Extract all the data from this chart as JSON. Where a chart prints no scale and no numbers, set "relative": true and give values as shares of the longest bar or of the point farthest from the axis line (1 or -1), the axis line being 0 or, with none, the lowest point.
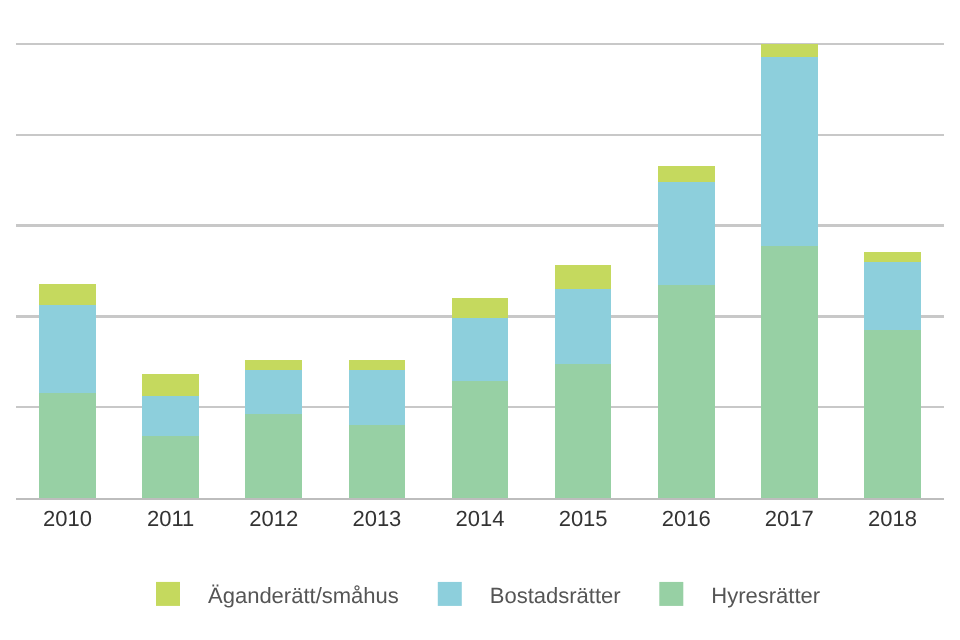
{
  "chart_data": {
    "type": "bar",
    "stacked": true,
    "relative": true,
    "grid": true,
    "legend": "bottom",
    "categories": [
      "2010",
      "2011",
      "2012",
      "2013",
      "2014",
      "2015",
      "2016",
      "2017",
      "2018"
    ],
    "series": [
      {
        "name": "Hyresrätter",
        "color": "#97d0a4",
        "values": [
          0.232,
          0.136,
          0.186,
          0.16,
          0.258,
          0.296,
          0.468,
          0.556,
          0.37
        ]
      },
      {
        "name": "Bostadsrätter",
        "color": "#8dcfdc",
        "values": [
          0.192,
          0.089,
          0.096,
          0.122,
          0.139,
          0.164,
          0.228,
          0.415,
          0.149
        ]
      },
      {
        "name": "Äganderätt/småhus",
        "color": "#c5d95e",
        "values": [
          0.048,
          0.049,
          0.022,
          0.022,
          0.043,
          0.053,
          0.035,
          0.029,
          0.023
        ]
      }
    ]
  }
}
